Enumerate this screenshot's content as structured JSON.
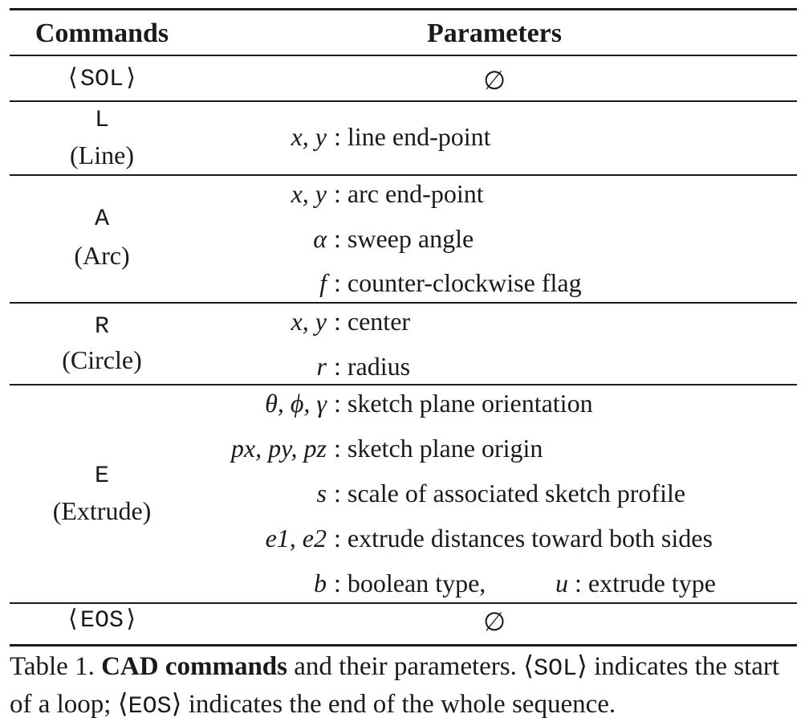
{
  "table": {
    "headers": {
      "commands": "Commands",
      "parameters": "Parameters"
    },
    "rows": {
      "sol": {
        "command": "SOL",
        "param": "∅"
      },
      "line": {
        "command": "L",
        "name": "(Line)",
        "params": [
          {
            "sym": "x, y",
            "desc": "line end-point"
          }
        ]
      },
      "arc": {
        "command": "A",
        "name": "(Arc)",
        "params": [
          {
            "sym": "x, y",
            "desc": "arc end-point"
          },
          {
            "sym": "α",
            "desc": "sweep angle"
          },
          {
            "sym": "f",
            "desc": "counter-clockwise flag"
          }
        ]
      },
      "circle": {
        "command": "R",
        "name": "(Circle)",
        "params": [
          {
            "sym": "x, y",
            "desc": "center"
          },
          {
            "sym": "r",
            "desc": "radius"
          }
        ]
      },
      "extrude": {
        "command": "E",
        "name": "(Extrude)",
        "params": [
          {
            "sym": "θ, ϕ, γ",
            "desc": "sketch plane orientation"
          },
          {
            "sym": "px, py, pz",
            "desc": "sketch plane origin"
          },
          {
            "sym": "s",
            "desc": "scale of associated sketch profile"
          },
          {
            "sym": "e1, e2",
            "desc": "extrude distances toward both sides"
          },
          {
            "sym": "b",
            "desc": "boolean type,",
            "sym2": "u",
            "desc2": "extrude type"
          }
        ]
      },
      "eos": {
        "command": "EOS",
        "param": "∅"
      }
    }
  },
  "caption": {
    "label": "Table 1.",
    "bold": "CAD commands",
    "text1": "and their parameters.",
    "sol": "SOL",
    "text2": "indicates the start of a loop;",
    "eos": "EOS",
    "text3": "indicates the end of the whole sequence."
  }
}
